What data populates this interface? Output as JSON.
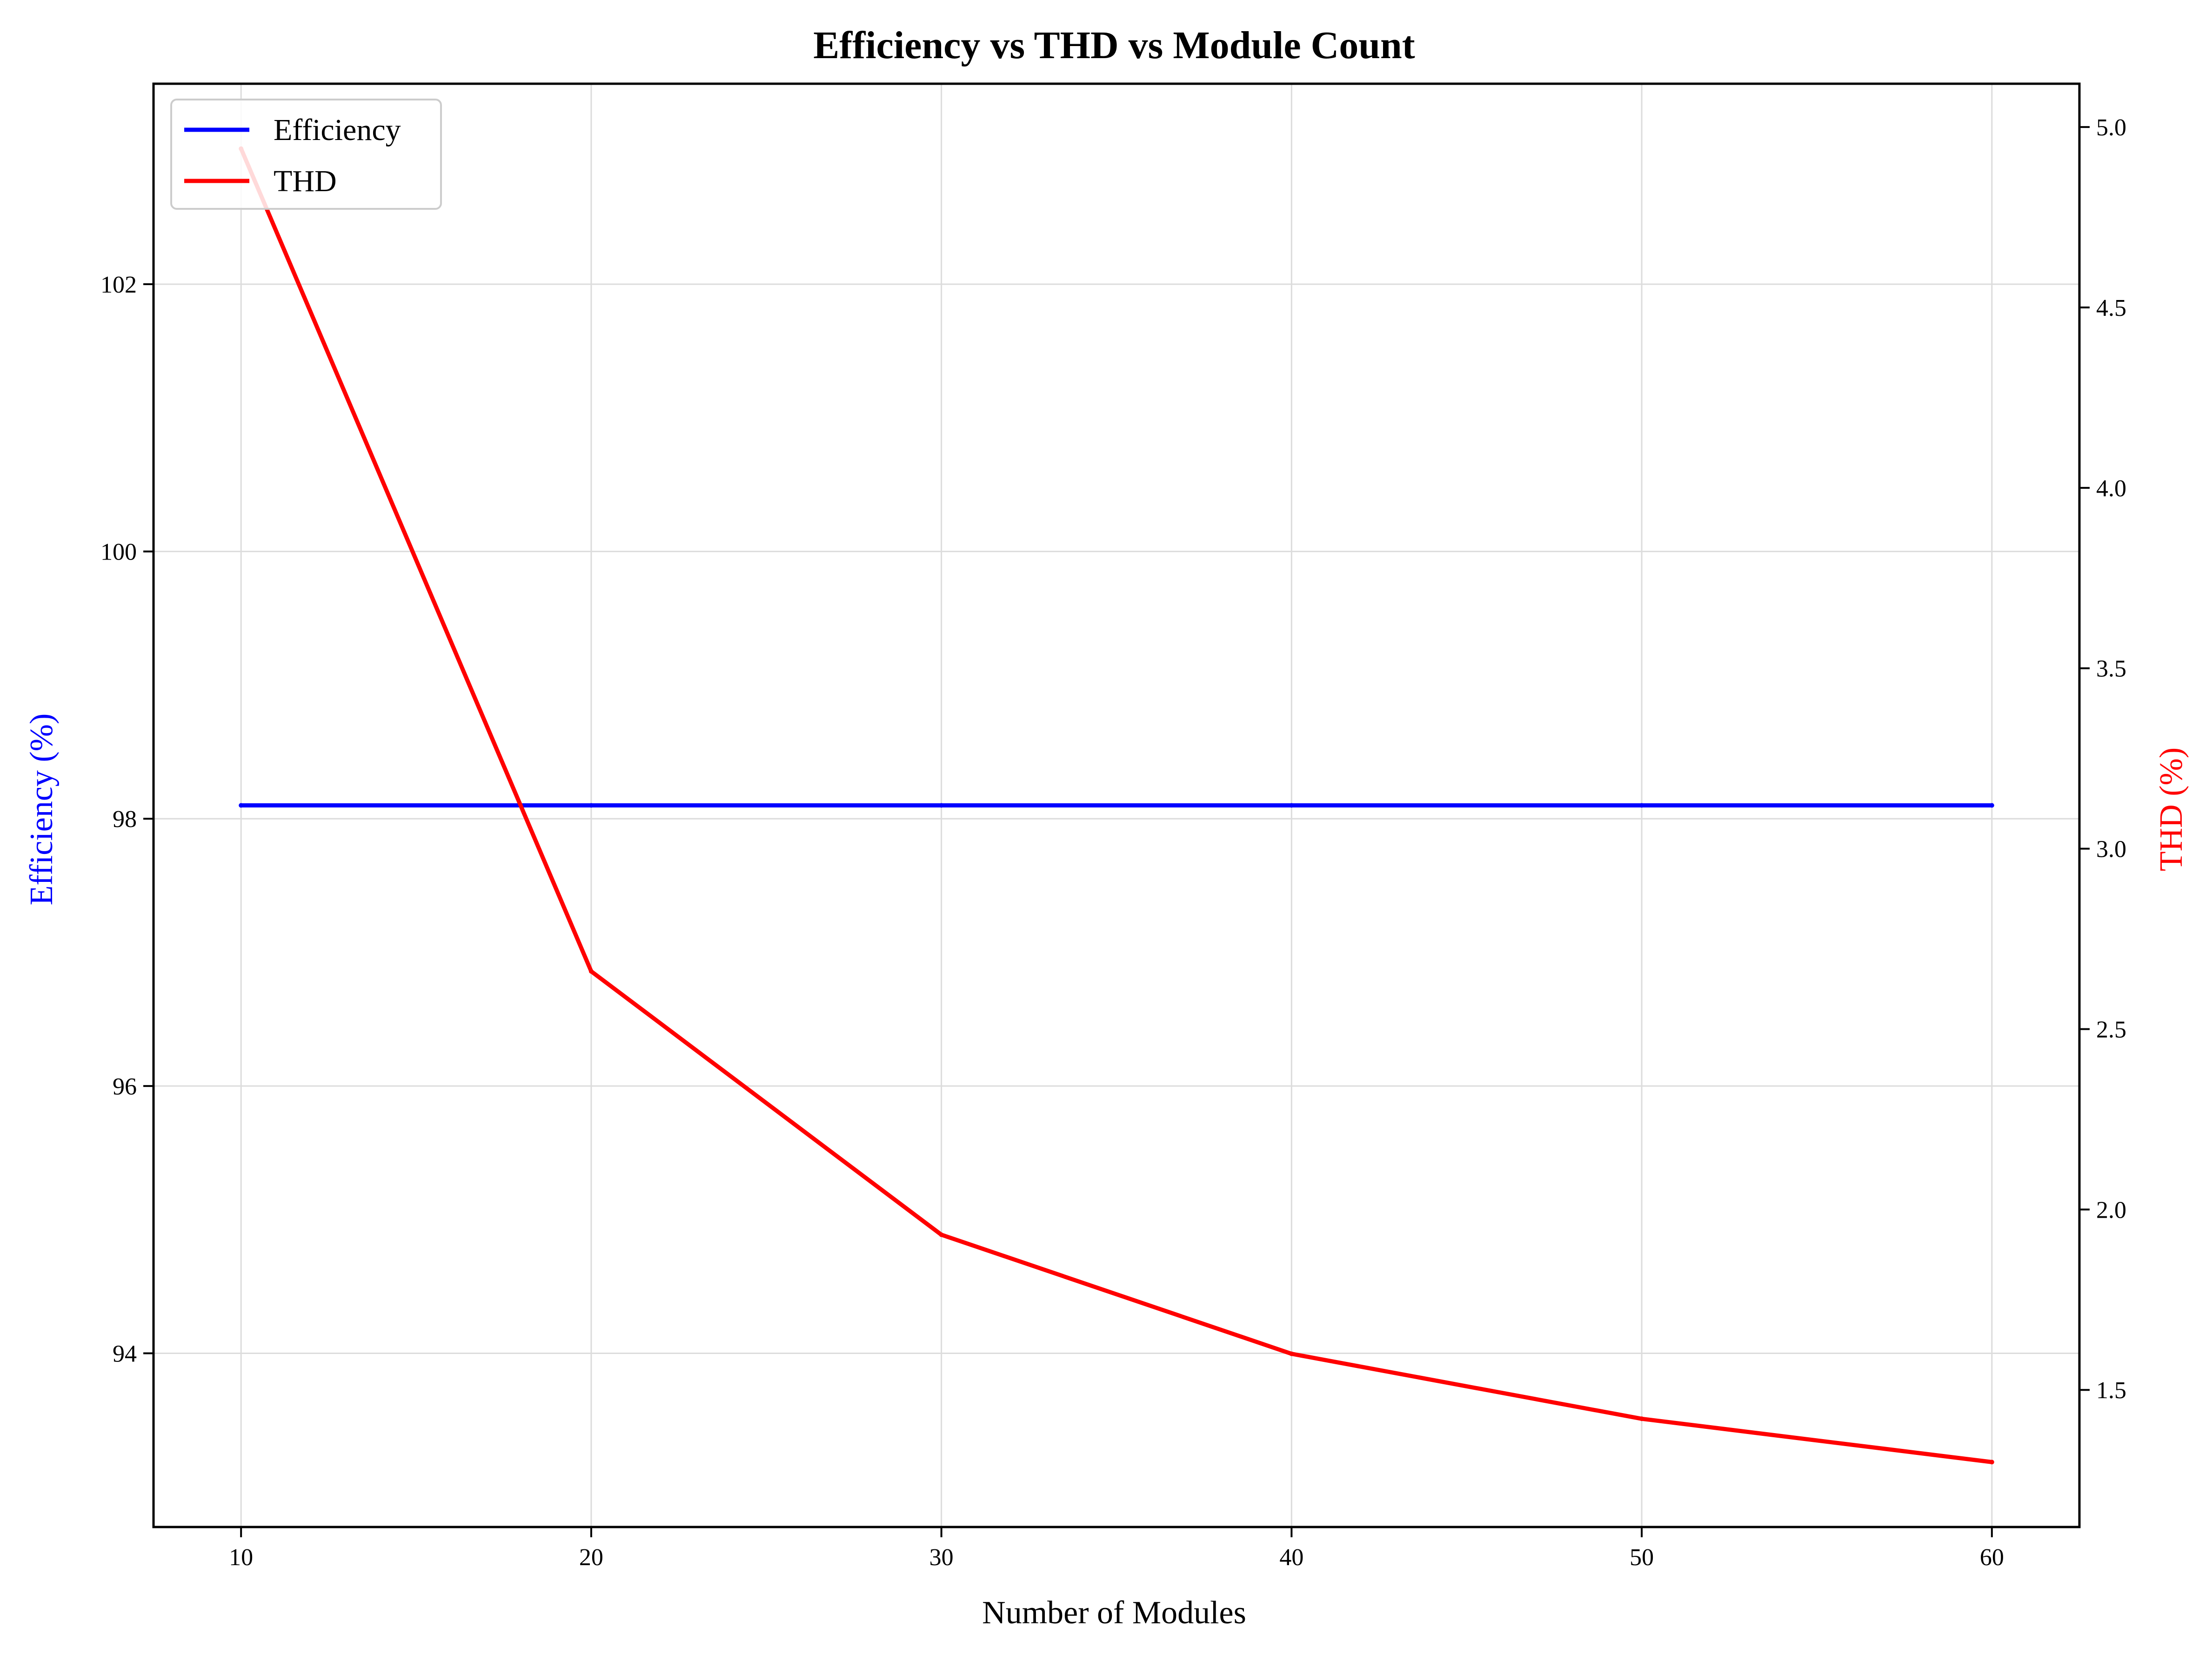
{
  "chart_data": {
    "type": "line",
    "title": "Efficiency vs THD vs Module Count",
    "xlabel": "Number of Modules",
    "ylabel_left": "Efficiency (%)",
    "ylabel_right": "THD (%)",
    "x": [
      10,
      20,
      30,
      40,
      50,
      60
    ],
    "xlim": [
      7.5,
      62.5
    ],
    "ylim_left": [
      92.7,
      103.5
    ],
    "ylim_right": [
      1.12,
      5.12
    ],
    "x_ticks": [
      10,
      20,
      30,
      40,
      50,
      60
    ],
    "y_ticks_left": [
      94,
      96,
      98,
      100,
      102
    ],
    "y_ticks_right": [
      1.5,
      2.0,
      2.5,
      3.0,
      3.5,
      4.0,
      4.5,
      5.0
    ],
    "grid": true,
    "legend_position": "top-left",
    "series": [
      {
        "name": "Efficiency",
        "axis": "left",
        "color": "#0000ff",
        "values": [
          98.1,
          98.1,
          98.1,
          98.1,
          98.1,
          98.1
        ]
      },
      {
        "name": "THD",
        "axis": "right",
        "color": "#ff0000",
        "values": [
          4.94,
          2.66,
          1.93,
          1.6,
          1.42,
          1.3
        ]
      }
    ]
  }
}
